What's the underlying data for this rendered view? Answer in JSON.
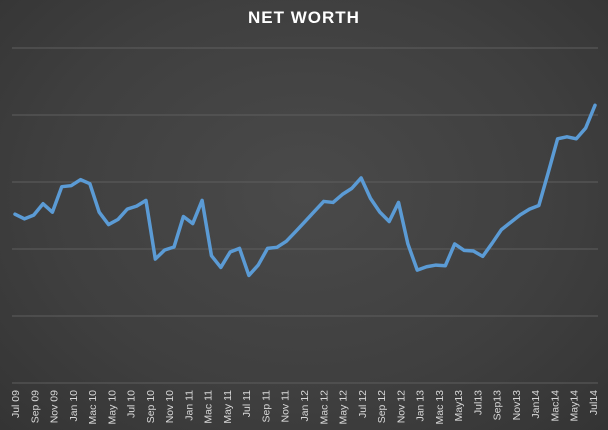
{
  "chart_data": {
    "type": "line",
    "title": "NET WORTH",
    "xlabel": "",
    "ylabel": "",
    "ylim": [
      0,
      100
    ],
    "grid": true,
    "y_gridlines": [
      0,
      20,
      40,
      60,
      80,
      100
    ],
    "x_tick_labels": [
      "Jul 09",
      "Sep 09",
      "Nov 09",
      "Jan 10",
      "Mac 10",
      "May 10",
      "Jul 10",
      "Sep 10",
      "Nov 10",
      "Jan 11",
      "Mac 11",
      "May 11",
      "Jul 11",
      "Sep 11",
      "Nov 11",
      "Jan 12",
      "Mac 12",
      "May 12",
      "Jul 12",
      "Sep 12",
      "Nov 12",
      "Jan 13",
      "Mac 13",
      "May13",
      "Jul13",
      "Sep13",
      "Nov13",
      "Jan14",
      "Mac14",
      "May14",
      "Jul14"
    ],
    "colors": {
      "series": "#5b9bd5",
      "title": "#ffffff"
    },
    "series": [
      {
        "values": [
          50.4,
          49.0,
          50.1,
          53.5,
          51.0,
          58.6,
          58.9,
          60.7,
          59.5,
          51.0,
          47.3,
          48.8,
          51.9,
          52.8,
          54.5,
          37.0,
          39.7,
          40.6,
          49.7,
          47.6,
          54.5,
          38.0,
          34.5,
          39.1,
          40.2,
          32.1,
          35.2,
          40.2,
          40.5,
          42.3,
          45.2,
          48.2,
          51.2,
          54.2,
          53.9,
          56.3,
          58.1,
          61.2,
          55.1,
          51.0,
          48.2,
          53.9,
          41.5,
          33.7,
          34.7,
          35.2,
          35.0,
          41.5,
          39.6,
          39.4,
          37.8,
          41.7,
          45.8,
          48.0,
          50.2,
          51.9,
          53.0,
          62.8,
          72.9,
          73.5,
          72.9,
          76.1,
          82.9
        ]
      }
    ]
  }
}
